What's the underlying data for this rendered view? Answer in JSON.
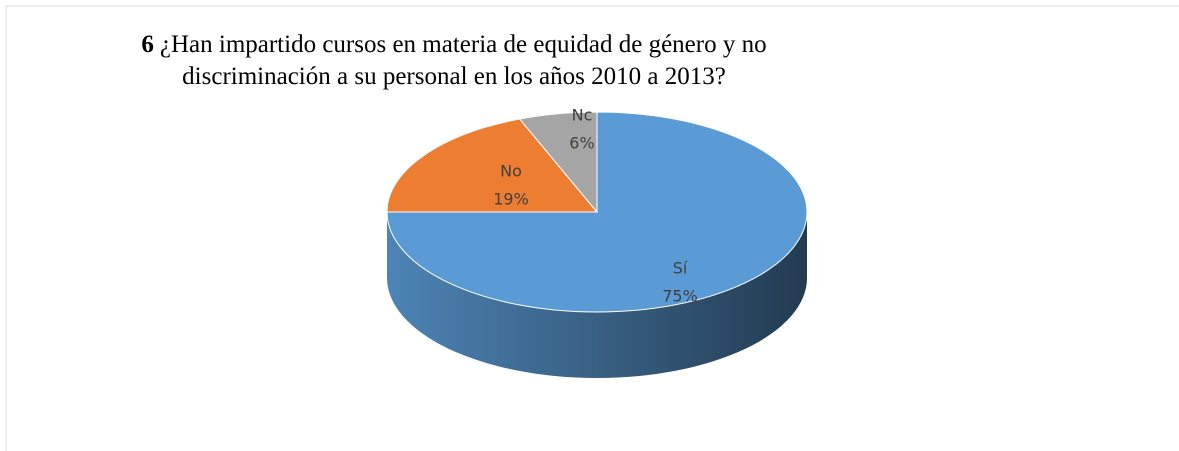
{
  "chart_data": {
    "type": "pie3d",
    "title_number": "6",
    "title": [
      "¿Han impartido cursos en materia de equidad de género y no",
      "discriminación a su personal en los años 2010 a 2013?"
    ],
    "categories": [
      "Sí",
      "No",
      "Nc"
    ],
    "values": [
      75,
      19,
      6
    ],
    "value_labels": [
      "75%",
      "19%",
      "6%"
    ],
    "colors": [
      "#5b9bd5",
      "#ed7d31",
      "#a5a5a5"
    ]
  }
}
